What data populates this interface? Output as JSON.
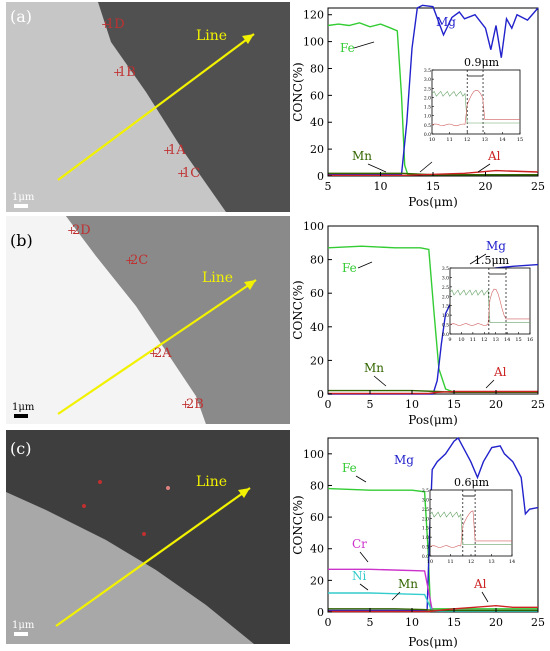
{
  "panels": [
    {
      "label": "(a)",
      "scale": "1μm",
      "line_label": "Line",
      "points": [
        "1D",
        "1B",
        "1A",
        "1C"
      ],
      "chart_data": {
        "type": "line",
        "xlabel": "Pos(μm)",
        "ylabel": "CONC(%)",
        "xlim": [
          5,
          25
        ],
        "ylim": [
          0,
          125
        ],
        "xticks": [
          5,
          10,
          15,
          20,
          25
        ],
        "yticks": [
          0,
          20,
          40,
          60,
          80,
          100,
          120
        ],
        "series": [
          {
            "name": "Fe",
            "color": "#33cc33",
            "x": [
              5,
              6,
              7,
              8,
              9,
              10,
              11,
              11.6,
              12.0,
              12.3,
              12.6,
              25
            ],
            "y": [
              112,
              113,
              112,
              114,
              111,
              113,
              110,
              108,
              60,
              8,
              1,
              1
            ]
          },
          {
            "name": "Mg",
            "color": "#2222cc",
            "x": [
              5,
              12.0,
              12.5,
              13.0,
              13.5,
              14,
              15,
              16,
              16.8,
              17.5,
              18,
              19,
              20,
              20.5,
              21,
              21.5,
              22,
              22.5,
              23,
              24,
              25
            ],
            "y": [
              1,
              1,
              40,
              95,
              125,
              127,
              126,
              105,
              118,
              122,
              117,
              120,
              110,
              94,
              112,
              88,
              117,
              110,
              120,
              116,
              125
            ]
          },
          {
            "name": "Mn",
            "color": "#336600",
            "x": [
              5,
              10,
              12,
              15,
              20,
              25
            ],
            "y": [
              2,
              2,
              2,
              1,
              1,
              1
            ]
          },
          {
            "name": "Al",
            "color": "#cc2222",
            "x": [
              5,
              12.5,
              14,
              18,
              21,
              25
            ],
            "y": [
              0.5,
              0.5,
              1,
              2,
              4,
              3
            ]
          }
        ],
        "inset": {
          "label": "0.9μm",
          "xlim": [
            10,
            15
          ],
          "ylim": [
            0,
            3.5
          ],
          "xticks": [
            10,
            11,
            12,
            13,
            14,
            15
          ],
          "yticks": [
            0,
            0.5,
            1.0,
            1.5,
            2.0,
            2.5,
            3.0,
            3.5
          ],
          "marks": [
            12.0,
            12.9
          ]
        }
      }
    },
    {
      "label": "(b)",
      "scale": "1μm",
      "line_label": "Line",
      "points": [
        "2D",
        "2C",
        "2A",
        "2B"
      ],
      "chart_data": {
        "type": "line",
        "xlabel": "Pos(μm)",
        "ylabel": "CONC(%)",
        "xlim": [
          0,
          25
        ],
        "ylim": [
          0,
          100
        ],
        "xticks": [
          0,
          5,
          10,
          15,
          20,
          25
        ],
        "yticks": [
          0,
          20,
          40,
          60,
          80,
          100
        ],
        "series": [
          {
            "name": "Fe",
            "color": "#33cc33",
            "x": [
              0,
              4,
              8,
              11,
              12,
              12.6,
              13.2,
              14,
              15,
              25
            ],
            "y": [
              87,
              88,
              87,
              87,
              86,
              50,
              15,
              3,
              1,
              1
            ]
          },
          {
            "name": "Mg",
            "color": "#2222cc",
            "x": [
              0,
              12.5,
              13,
              13.5,
              14,
              15,
              16,
              17,
              18,
              19,
              20,
              22,
              25
            ],
            "y": [
              0,
              0,
              8,
              30,
              48,
              58,
              65,
              70,
              72,
              74,
              75,
              76,
              77
            ]
          },
          {
            "name": "Mn",
            "color": "#336600",
            "x": [
              0,
              10,
              13,
              15,
              25
            ],
            "y": [
              2,
              2,
              1.5,
              1,
              1
            ]
          },
          {
            "name": "Al",
            "color": "#cc2222",
            "x": [
              0,
              12,
              13,
              15,
              19,
              25
            ],
            "y": [
              0.3,
              0.3,
              1,
              1.5,
              1.5,
              1.5
            ]
          }
        ],
        "inset": {
          "label": "1.5μm",
          "xlim": [
            9,
            16
          ],
          "ylim": [
            0,
            3.5
          ],
          "xticks": [
            9,
            10,
            11,
            12,
            13,
            14,
            15,
            16
          ],
          "yticks": [
            0,
            0.5,
            1.0,
            1.5,
            2.0,
            2.5,
            3.0,
            3.5
          ],
          "marks": [
            12.4,
            13.9
          ]
        }
      }
    },
    {
      "label": "(c)",
      "scale": "1μm",
      "line_label": "Line",
      "points": [],
      "chart_data": {
        "type": "line",
        "xlabel": "Pos(μm)",
        "ylabel": "CONC(%)",
        "xlim": [
          0,
          25
        ],
        "ylim": [
          0,
          110
        ],
        "xticks": [
          0,
          5,
          10,
          15,
          20,
          25
        ],
        "yticks": [
          0,
          20,
          40,
          60,
          80,
          100
        ],
        "series": [
          {
            "name": "Fe",
            "color": "#33cc33",
            "x": [
              0,
              5,
              10,
              11.5,
              11.9,
              12.2,
              25
            ],
            "y": [
              78,
              77,
              77,
              76,
              40,
              2,
              2
            ]
          },
          {
            "name": "Mg",
            "color": "#2222cc",
            "x": [
              0,
              11.8,
              12.1,
              12.4,
              13,
              14,
              15,
              15.5,
              16,
              17,
              17.8,
              18.5,
              19.5,
              20.5,
              21,
              22,
              23,
              23.5,
              24,
              25
            ],
            "y": [
              1,
              1,
              50,
              90,
              95,
              100,
              108,
              110,
              105,
              95,
              85,
              95,
              104,
              105,
              100,
              95,
              85,
              62,
              65,
              66
            ]
          },
          {
            "name": "Cr",
            "color": "#cc33cc",
            "x": [
              0,
              5,
              11.5,
              12.1,
              12.4,
              25
            ],
            "y": [
              27,
              27,
              26,
              10,
              1,
              1
            ]
          },
          {
            "name": "Ni",
            "color": "#33cccc",
            "x": [
              0,
              5,
              11.5,
              12.1,
              12.4,
              25
            ],
            "y": [
              12,
              12,
              11,
              4,
              0.5,
              0.5
            ]
          },
          {
            "name": "Mn",
            "color": "#336600",
            "x": [
              0,
              8,
              11.5,
              12.5,
              25
            ],
            "y": [
              2,
              2,
              1.5,
              1,
              1
            ]
          },
          {
            "name": "Al",
            "color": "#cc2222",
            "x": [
              0,
              12,
              15,
              20,
              22,
              25
            ],
            "y": [
              0.3,
              0.3,
              2,
              4,
              3,
              3
            ]
          }
        ],
        "inset": {
          "label": "0.6μm",
          "xlim": [
            10,
            14
          ],
          "ylim": [
            0,
            3.5
          ],
          "xticks": [
            10,
            11,
            12,
            13,
            14
          ],
          "yticks": [
            0,
            0.5,
            1.0,
            1.5,
            2.0,
            2.5,
            3.0,
            3.5
          ],
          "marks": [
            11.6,
            12.2
          ]
        }
      }
    }
  ]
}
